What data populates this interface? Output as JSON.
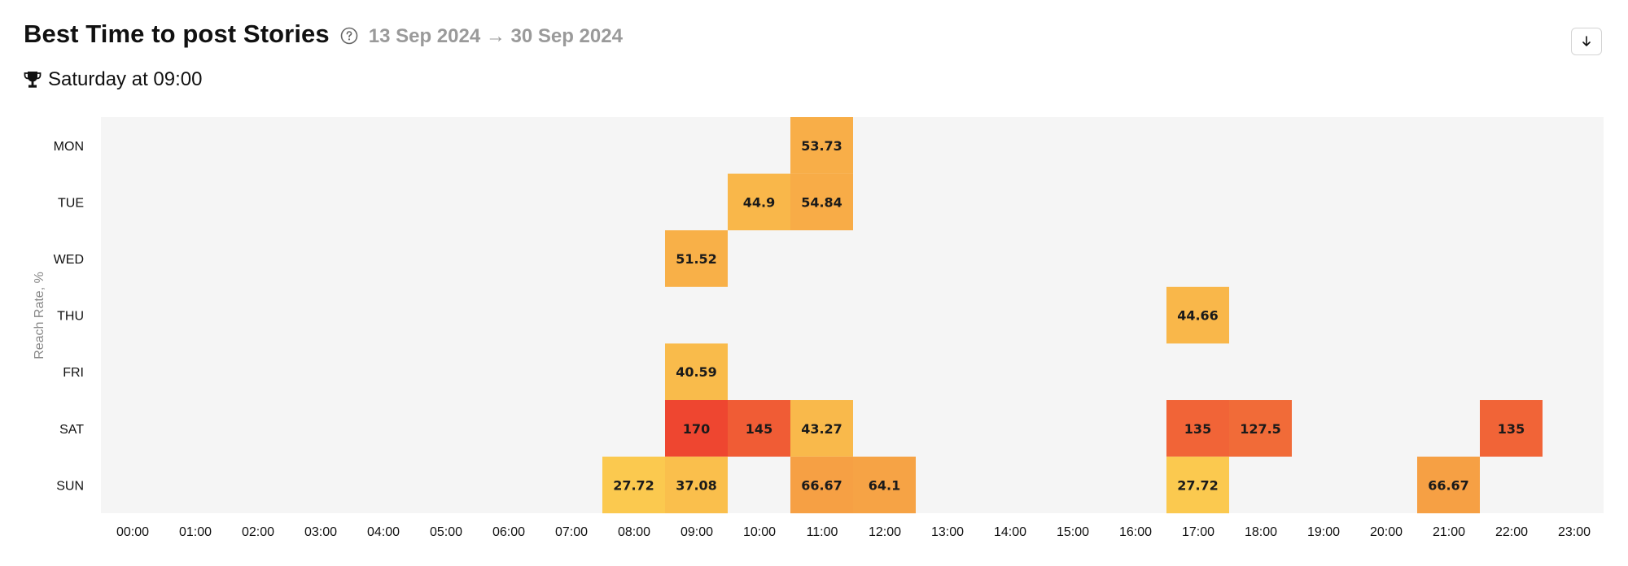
{
  "header": {
    "title": "Best Time to post Stories",
    "date_range": "13 Sep 2024 → 30 Sep 2024",
    "help_icon": "question-circle-icon",
    "download_icon": "arrow-down-icon"
  },
  "best_time": {
    "icon": "trophy-icon",
    "text": "Saturday at 09:00"
  },
  "chart_data": {
    "type": "heatmap",
    "ylabel": "Reach Rate, %",
    "y_categories": [
      "MON",
      "TUE",
      "WED",
      "THU",
      "FRI",
      "SAT",
      "SUN"
    ],
    "x_categories": [
      "00:00",
      "01:00",
      "02:00",
      "03:00",
      "04:00",
      "05:00",
      "06:00",
      "07:00",
      "08:00",
      "09:00",
      "10:00",
      "11:00",
      "12:00",
      "13:00",
      "14:00",
      "15:00",
      "16:00",
      "17:00",
      "18:00",
      "19:00",
      "20:00",
      "21:00",
      "22:00",
      "23:00"
    ],
    "cells": [
      {
        "day": "MON",
        "hour": "11:00",
        "value": 53.73,
        "label": "53.73"
      },
      {
        "day": "TUE",
        "hour": "10:00",
        "value": 44.9,
        "label": "44.9"
      },
      {
        "day": "TUE",
        "hour": "11:00",
        "value": 54.84,
        "label": "54.84"
      },
      {
        "day": "WED",
        "hour": "09:00",
        "value": 51.52,
        "label": "51.52"
      },
      {
        "day": "THU",
        "hour": "17:00",
        "value": 44.66,
        "label": "44.66"
      },
      {
        "day": "FRI",
        "hour": "09:00",
        "value": 40.59,
        "label": "40.59"
      },
      {
        "day": "SAT",
        "hour": "09:00",
        "value": 170,
        "label": "170"
      },
      {
        "day": "SAT",
        "hour": "10:00",
        "value": 145,
        "label": "145"
      },
      {
        "day": "SAT",
        "hour": "11:00",
        "value": 43.27,
        "label": "43.27"
      },
      {
        "day": "SAT",
        "hour": "17:00",
        "value": 135,
        "label": "135"
      },
      {
        "day": "SAT",
        "hour": "18:00",
        "value": 127.5,
        "label": "127.5"
      },
      {
        "day": "SAT",
        "hour": "22:00",
        "value": 135,
        "label": "135"
      },
      {
        "day": "SUN",
        "hour": "08:00",
        "value": 27.72,
        "label": "27.72"
      },
      {
        "day": "SUN",
        "hour": "09:00",
        "value": 37.08,
        "label": "37.08"
      },
      {
        "day": "SUN",
        "hour": "11:00",
        "value": 66.67,
        "label": "66.67"
      },
      {
        "day": "SUN",
        "hour": "12:00",
        "value": 64.1,
        "label": "64.1"
      },
      {
        "day": "SUN",
        "hour": "17:00",
        "value": 27.72,
        "label": "27.72"
      },
      {
        "day": "SUN",
        "hour": "21:00",
        "value": 66.67,
        "label": "66.67"
      }
    ],
    "color_scale": {
      "min_color": "#fbc94f",
      "mid_color": "#f6a044",
      "max_color": "#ee4630"
    },
    "background_color": "#f5f5f5",
    "grid": false,
    "legend": "none"
  }
}
